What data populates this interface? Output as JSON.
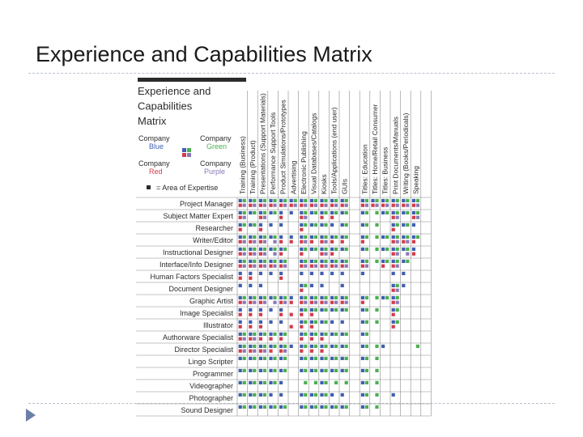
{
  "slide": {
    "title": "Experience and Capabilities Matrix",
    "bullet_icon": "triangle-bullet-icon"
  },
  "matrix": {
    "heading": [
      "Experience and",
      "Capabilities",
      "Matrix"
    ],
    "legend": {
      "company_blue": [
        "Company",
        "Blue"
      ],
      "company_green": [
        "Company",
        "Green"
      ],
      "company_red": [
        "Company",
        "Red"
      ],
      "company_purple": [
        "Company",
        "Purple"
      ],
      "expertise": "= Area of Expertise"
    },
    "colors": {
      "blue": "#3f5fb0",
      "green": "#4caf50",
      "red": "#d23c4b",
      "purple": "#8a79b8",
      "dark": "#2b2b2b",
      "grid": "#8c8c8c"
    },
    "columns": [
      "Training (Business)",
      "Training (Product)",
      "Presentations (Support Materials)",
      "Performance Support Tools",
      "Product Simulations/Prototypes",
      "Advertising",
      "Electronic Publishing",
      "Visual Databases/Catalogs",
      "Kiosks",
      "Tools/Applications (end user)",
      "GUIs",
      "",
      "Titles: Education",
      "Titles: Home/Retail Consumer",
      "Titles: Business",
      "Print Documents/Manuals",
      "Writing (Books/Periodicals)",
      "Speaking",
      ""
    ],
    "rows": [
      {
        "label": "Project Manager",
        "cells": [
          "BGRP",
          "BGRP",
          "BGRP",
          "BGRP",
          "BGRP",
          "BGRP",
          "BGRP",
          "BGRP",
          "BGRP",
          "BGRP",
          "BGRP",
          "",
          "BGRP",
          "BGRP",
          "BGRP",
          "BGRP",
          "BGRP",
          "BGRP",
          ""
        ]
      },
      {
        "label": "Subject Matter Expert",
        "cells": [
          "BGRP",
          "BG",
          "BGRP",
          "BG",
          "BR",
          "B",
          "BGRP",
          "BG",
          "BGR",
          "BGR",
          "BG",
          "",
          "BG",
          "G",
          "BG",
          "BGRP",
          "BG",
          "BGRP",
          ""
        ]
      },
      {
        "label": "Researcher",
        "cells": [
          "BGR",
          "BG",
          "BR",
          "B",
          "B",
          "",
          "BGR",
          "BG",
          "BG",
          "B",
          "BG",
          "",
          "BG",
          "G",
          "",
          "BGR",
          "BG",
          "B",
          ""
        ]
      },
      {
        "label": "Writer/Editor",
        "cells": [
          "BGRP",
          "BGRP",
          "BGRP",
          "BGP",
          "BR",
          "BR",
          "BGRP",
          "BGR",
          "BGRP",
          "BGR",
          "BGR",
          "",
          "BGR",
          "G",
          "BG",
          "BGRP",
          "BGRP",
          "BGR",
          ""
        ]
      },
      {
        "label": "Instructional Designer",
        "cells": [
          "BGRP",
          "BGRP",
          "BGRP",
          "BGP",
          "BGR",
          "",
          "BGR",
          "BG",
          "BGRP",
          "BGR",
          "BG",
          "",
          "BG",
          "G",
          "BG",
          "BGRP",
          "BGP",
          "BR",
          ""
        ]
      },
      {
        "label": "Interface/Info Designer",
        "cells": [
          "BGRP",
          "BGRP",
          "BGRP",
          "BGRP",
          "BGRP",
          "",
          "BGRP",
          "BGRP",
          "BGRP",
          "BGRP",
          "BGRP",
          "",
          "BGRP",
          "G",
          "BGR",
          "BGRP",
          "BG",
          "",
          ""
        ]
      },
      {
        "label": "Human Factors Specialist",
        "cells": [
          "BR",
          "BR",
          "B",
          "B",
          "BR",
          "",
          "B",
          "B",
          "B",
          "B",
          "B",
          "",
          "B",
          "",
          "",
          "B",
          "B",
          "",
          ""
        ]
      },
      {
        "label": "Document Designer",
        "cells": [
          "B",
          "B",
          "B",
          "",
          "",
          "",
          "BGR",
          "B",
          "B",
          "",
          "B",
          "",
          "",
          "",
          "",
          "BGRP",
          "B",
          "",
          ""
        ]
      },
      {
        "label": "Graphic Artist",
        "cells": [
          "BGRP",
          "BGRP",
          "BGRP",
          "BGP",
          "BGRP",
          "BR",
          "BGRP",
          "BGRP",
          "BGRP",
          "BGRP",
          "BGRP",
          "",
          "BGR",
          "G",
          "BG",
          "BGRP",
          "",
          "",
          ""
        ]
      },
      {
        "label": "Image Specialist",
        "cells": [
          "BR",
          "BR",
          "BR",
          "B",
          "BR",
          "R",
          "BGR",
          "BGR",
          "BG",
          "BG",
          "BG",
          "",
          "BG",
          "G",
          "",
          "BGR",
          "",
          "",
          ""
        ]
      },
      {
        "label": "Illustrator",
        "cells": [
          "BR",
          "BR",
          "BR",
          "B",
          "B",
          "R",
          "BGR",
          "BGR",
          "BG",
          "B",
          "B",
          "",
          "BG",
          "G",
          "",
          "BGR",
          "",
          "",
          ""
        ]
      },
      {
        "label": "Authorware Specialist",
        "cells": [
          "BGRP",
          "BGRP",
          "BGR",
          "BGR",
          "BGR",
          "",
          "BGR",
          "BGR",
          "BGR",
          "BG",
          "BG",
          "",
          "BG",
          "",
          "",
          "",
          "",
          "",
          ""
        ]
      },
      {
        "label": "Director Specialist",
        "cells": [
          "BGRP",
          "BGRP",
          "BGRP",
          "BGR",
          "BGRP",
          "B",
          "BGR",
          "BGR",
          "BGR",
          "BG",
          "BG",
          "",
          "BG",
          "G",
          "B",
          "",
          "",
          "G",
          ""
        ]
      },
      {
        "label": "Lingo Scripter",
        "cells": [
          "BG",
          "BG",
          "BG",
          "BG",
          "BG",
          "",
          "BG",
          "BG",
          "BG",
          "BG",
          "BG",
          "",
          "BG",
          "G",
          "",
          "",
          "",
          "",
          ""
        ]
      },
      {
        "label": "Programmer",
        "cells": [
          "BG",
          "BG",
          "BG",
          "BG",
          "BG",
          "",
          "BG",
          "BG",
          "BG",
          "BG",
          "BG",
          "",
          "BG",
          "G",
          "",
          "",
          "",
          "",
          ""
        ]
      },
      {
        "label": "Videographer",
        "cells": [
          "BG",
          "BG",
          "BG",
          "BG",
          "B",
          "",
          "G",
          "G",
          "BG",
          "G",
          "G",
          "",
          "BG",
          "G",
          "",
          "",
          "",
          "",
          ""
        ]
      },
      {
        "label": "Photographer",
        "cells": [
          "BG",
          "BG",
          "BG",
          "B",
          "B",
          "",
          "BG",
          "BG",
          "BG",
          "B",
          "B",
          "",
          "BG",
          "G",
          "",
          "B",
          "",
          "",
          ""
        ]
      },
      {
        "label": "Sound Designer",
        "cells": [
          "BG",
          "BG",
          "BG",
          "BG",
          "BG",
          "",
          "BG",
          "BG",
          "BG",
          "BG",
          "BG",
          "",
          "BG",
          "G",
          "",
          "",
          "",
          "",
          ""
        ]
      }
    ]
  }
}
